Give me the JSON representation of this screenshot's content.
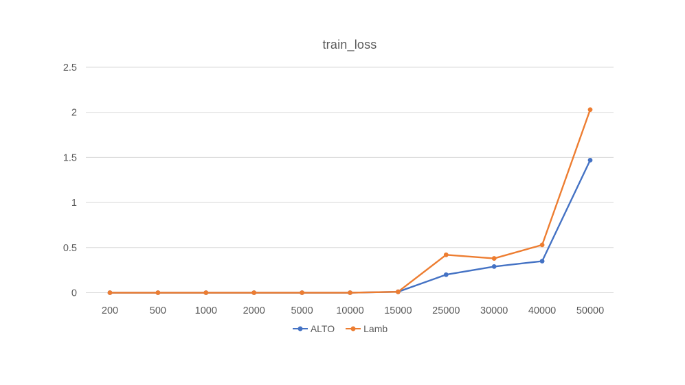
{
  "chart_data": {
    "type": "line",
    "title": "train_loss",
    "categories": [
      "200",
      "500",
      "1000",
      "2000",
      "5000",
      "10000",
      "15000",
      "25000",
      "30000",
      "40000",
      "50000"
    ],
    "series": [
      {
        "name": "ALTO",
        "color": "#4472C4",
        "values": [
          0,
          0,
          0,
          0,
          0,
          0,
          0.01,
          0.2,
          0.29,
          0.35,
          1.47
        ]
      },
      {
        "name": "Lamb",
        "color": "#ED7D31",
        "values": [
          0,
          0,
          0,
          0,
          0,
          0,
          0.01,
          0.42,
          0.38,
          0.53,
          2.03
        ]
      }
    ],
    "ylim": [
      0,
      2.5
    ],
    "yticks": [
      0,
      0.5,
      1,
      1.5,
      2,
      2.5
    ],
    "xlabel": "",
    "ylabel": "",
    "grid": "horizontal",
    "legend_position": "bottom",
    "grid_color": "#D9D9D9",
    "text_color": "#595959"
  }
}
